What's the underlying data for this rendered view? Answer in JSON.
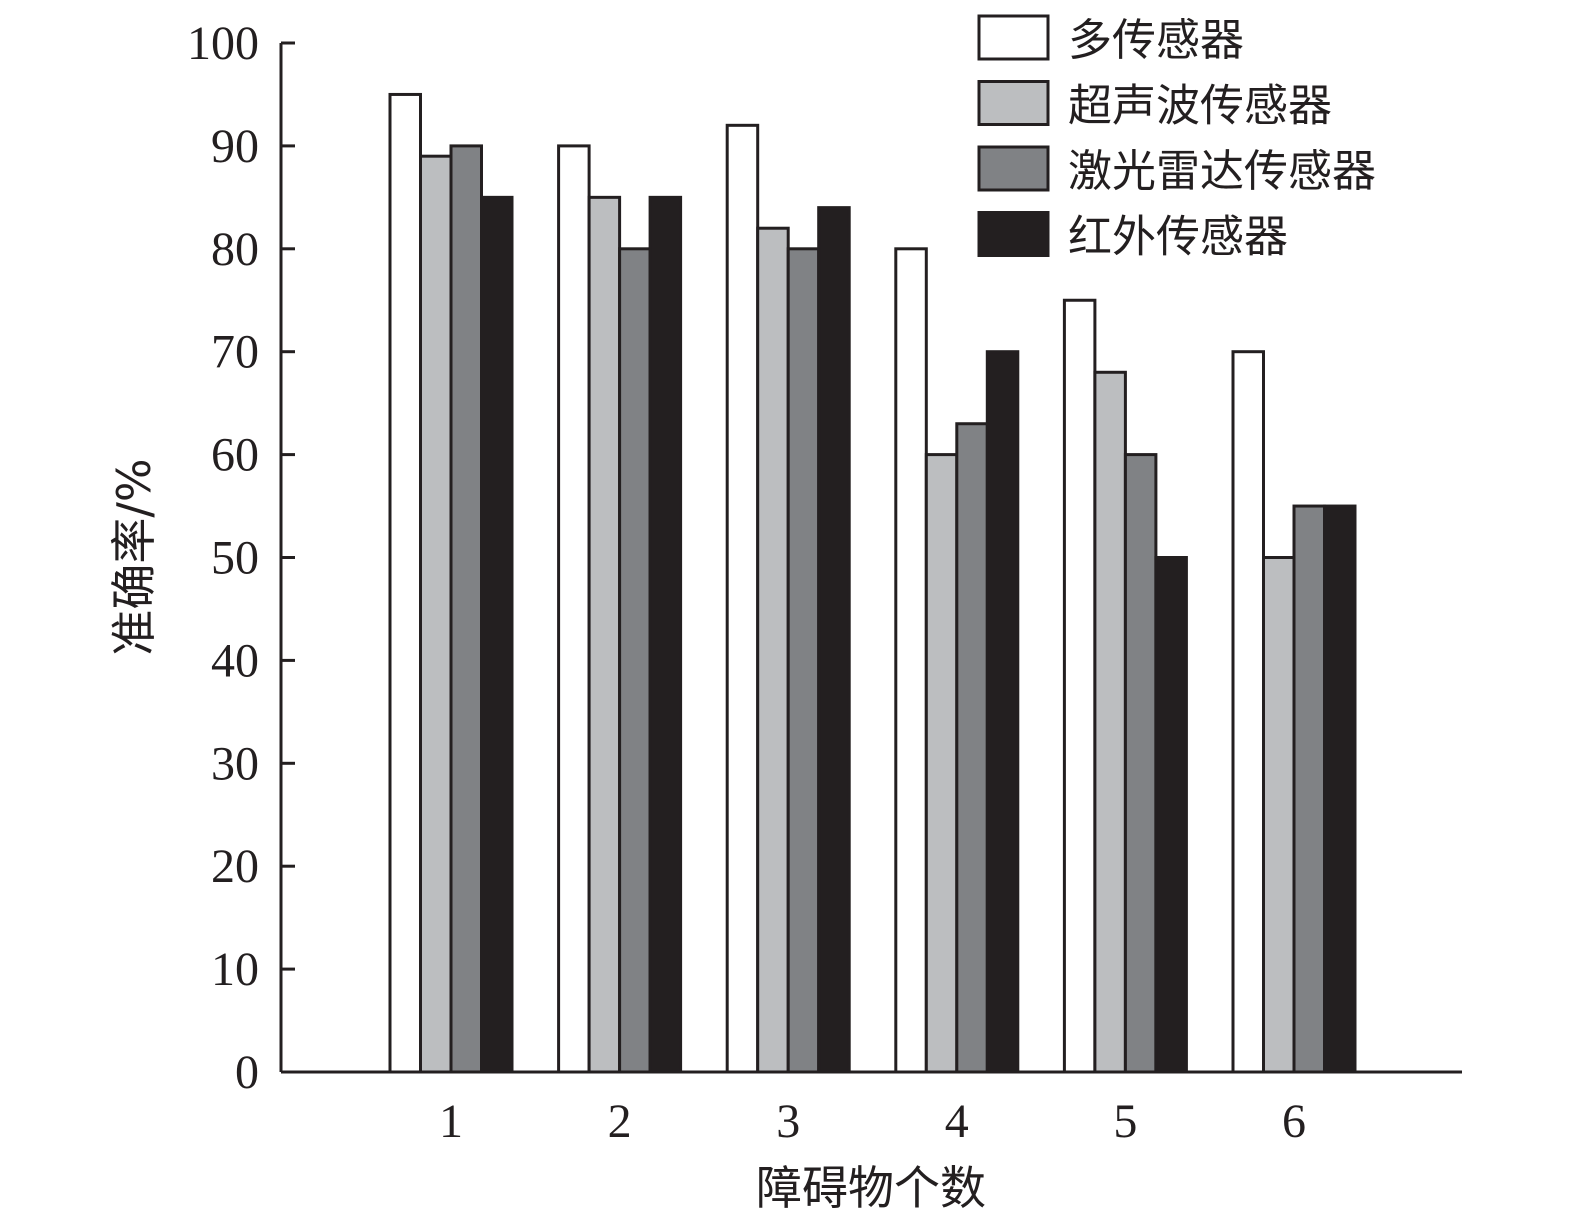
{
  "chart_data": {
    "type": "bar",
    "title": "",
    "xlabel": "障碍物个数",
    "ylabel": "准确率/%",
    "categories": [
      "1",
      "2",
      "3",
      "4",
      "5",
      "6"
    ],
    "ylim": [
      0,
      100
    ],
    "yticks": [
      "0",
      "10",
      "20",
      "30",
      "40",
      "50",
      "60",
      "70",
      "80",
      "90",
      "100"
    ],
    "grid": false,
    "legend_position": "top-right",
    "series": [
      {
        "name": "多传感器",
        "color": "#ffffff",
        "values": [
          95,
          90,
          92,
          80,
          75,
          70
        ]
      },
      {
        "name": "超声波传感器",
        "color": "#bcbec0",
        "values": [
          89,
          85,
          82,
          60,
          68,
          50
        ]
      },
      {
        "name": "激光雷达传感器",
        "color": "#808285",
        "values": [
          90,
          80,
          80,
          63,
          60,
          55
        ]
      },
      {
        "name": "红外传感器",
        "color": "#231f20",
        "values": [
          85,
          85,
          84,
          70,
          50,
          55
        ]
      }
    ]
  }
}
